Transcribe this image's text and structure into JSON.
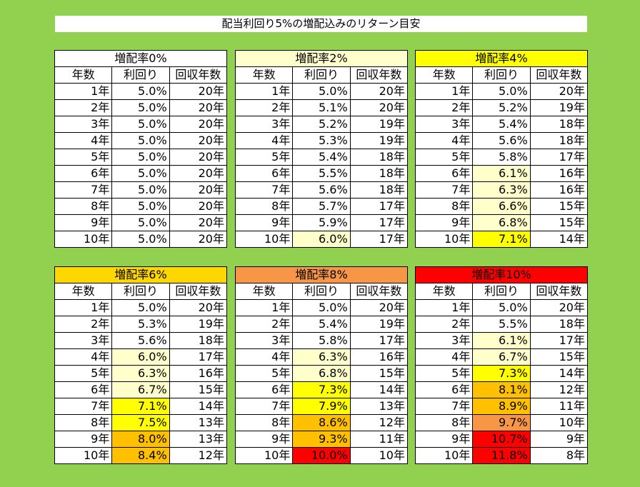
{
  "title": "配当利回り5%の増配込みのリターン目安",
  "columns": [
    "年数",
    "利回り",
    "回収年数"
  ],
  "panels": [
    {
      "heading": "増配率0%",
      "heading_color": "#ffffff",
      "rows": [
        {
          "year": "1年",
          "yield": "5.0%",
          "payback": "20年",
          "fill": "#ffffff"
        },
        {
          "year": "2年",
          "yield": "5.0%",
          "payback": "20年",
          "fill": "#ffffff"
        },
        {
          "year": "3年",
          "yield": "5.0%",
          "payback": "20年",
          "fill": "#ffffff"
        },
        {
          "year": "4年",
          "yield": "5.0%",
          "payback": "20年",
          "fill": "#ffffff"
        },
        {
          "year": "5年",
          "yield": "5.0%",
          "payback": "20年",
          "fill": "#ffffff"
        },
        {
          "year": "6年",
          "yield": "5.0%",
          "payback": "20年",
          "fill": "#ffffff"
        },
        {
          "year": "7年",
          "yield": "5.0%",
          "payback": "20年",
          "fill": "#ffffff"
        },
        {
          "year": "8年",
          "yield": "5.0%",
          "payback": "20年",
          "fill": "#ffffff"
        },
        {
          "year": "9年",
          "yield": "5.0%",
          "payback": "20年",
          "fill": "#ffffff"
        },
        {
          "year": "10年",
          "yield": "5.0%",
          "payback": "20年",
          "fill": "#ffffff"
        }
      ]
    },
    {
      "heading": "増配率2%",
      "heading_color": "#ffffcc",
      "rows": [
        {
          "year": "1年",
          "yield": "5.0%",
          "payback": "20年",
          "fill": "#ffffff"
        },
        {
          "year": "2年",
          "yield": "5.1%",
          "payback": "20年",
          "fill": "#ffffff"
        },
        {
          "year": "3年",
          "yield": "5.2%",
          "payback": "19年",
          "fill": "#ffffff"
        },
        {
          "year": "4年",
          "yield": "5.3%",
          "payback": "19年",
          "fill": "#ffffff"
        },
        {
          "year": "5年",
          "yield": "5.4%",
          "payback": "18年",
          "fill": "#ffffff"
        },
        {
          "year": "6年",
          "yield": "5.5%",
          "payback": "18年",
          "fill": "#ffffff"
        },
        {
          "year": "7年",
          "yield": "5.6%",
          "payback": "18年",
          "fill": "#ffffff"
        },
        {
          "year": "8年",
          "yield": "5.7%",
          "payback": "17年",
          "fill": "#ffffff"
        },
        {
          "year": "9年",
          "yield": "5.9%",
          "payback": "17年",
          "fill": "#ffffff"
        },
        {
          "year": "10年",
          "yield": "6.0%",
          "payback": "17年",
          "fill": "#ffffcc"
        }
      ]
    },
    {
      "heading": "増配率4%",
      "heading_color": "#ffff00",
      "rows": [
        {
          "year": "1年",
          "yield": "5.0%",
          "payback": "20年",
          "fill": "#ffffff"
        },
        {
          "year": "2年",
          "yield": "5.2%",
          "payback": "19年",
          "fill": "#ffffff"
        },
        {
          "year": "3年",
          "yield": "5.4%",
          "payback": "18年",
          "fill": "#ffffff"
        },
        {
          "year": "4年",
          "yield": "5.6%",
          "payback": "18年",
          "fill": "#ffffff"
        },
        {
          "year": "5年",
          "yield": "5.8%",
          "payback": "17年",
          "fill": "#ffffff"
        },
        {
          "year": "6年",
          "yield": "6.1%",
          "payback": "16年",
          "fill": "#ffffcc"
        },
        {
          "year": "7年",
          "yield": "6.3%",
          "payback": "16年",
          "fill": "#ffffcc"
        },
        {
          "year": "8年",
          "yield": "6.6%",
          "payback": "15年",
          "fill": "#ffffcc"
        },
        {
          "year": "9年",
          "yield": "6.8%",
          "payback": "15年",
          "fill": "#ffffcc"
        },
        {
          "year": "10年",
          "yield": "7.1%",
          "payback": "14年",
          "fill": "#ffff00"
        }
      ]
    },
    {
      "heading": "増配率6%",
      "heading_color": "#ffd700",
      "rows": [
        {
          "year": "1年",
          "yield": "5.0%",
          "payback": "20年",
          "fill": "#ffffff"
        },
        {
          "year": "2年",
          "yield": "5.3%",
          "payback": "19年",
          "fill": "#ffffff"
        },
        {
          "year": "3年",
          "yield": "5.6%",
          "payback": "18年",
          "fill": "#ffffff"
        },
        {
          "year": "4年",
          "yield": "6.0%",
          "payback": "17年",
          "fill": "#ffffcc"
        },
        {
          "year": "5年",
          "yield": "6.3%",
          "payback": "16年",
          "fill": "#ffffcc"
        },
        {
          "year": "6年",
          "yield": "6.7%",
          "payback": "15年",
          "fill": "#ffffcc"
        },
        {
          "year": "7年",
          "yield": "7.1%",
          "payback": "14年",
          "fill": "#ffff00"
        },
        {
          "year": "8年",
          "yield": "7.5%",
          "payback": "13年",
          "fill": "#ffff00"
        },
        {
          "year": "9年",
          "yield": "8.0%",
          "payback": "13年",
          "fill": "#ffc000"
        },
        {
          "year": "10年",
          "yield": "8.4%",
          "payback": "12年",
          "fill": "#ffc000"
        }
      ]
    },
    {
      "heading": "増配率8%",
      "heading_color": "#f79646",
      "rows": [
        {
          "year": "1年",
          "yield": "5.0%",
          "payback": "20年",
          "fill": "#ffffff"
        },
        {
          "year": "2年",
          "yield": "5.4%",
          "payback": "19年",
          "fill": "#ffffff"
        },
        {
          "year": "3年",
          "yield": "5.8%",
          "payback": "17年",
          "fill": "#ffffff"
        },
        {
          "year": "4年",
          "yield": "6.3%",
          "payback": "16年",
          "fill": "#ffffcc"
        },
        {
          "year": "5年",
          "yield": "6.8%",
          "payback": "15年",
          "fill": "#ffffcc"
        },
        {
          "year": "6年",
          "yield": "7.3%",
          "payback": "14年",
          "fill": "#ffff00"
        },
        {
          "year": "7年",
          "yield": "7.9%",
          "payback": "13年",
          "fill": "#ffff00"
        },
        {
          "year": "8年",
          "yield": "8.6%",
          "payback": "12年",
          "fill": "#ffc000"
        },
        {
          "year": "9年",
          "yield": "9.3%",
          "payback": "11年",
          "fill": "#ffc000"
        },
        {
          "year": "10年",
          "yield": "10.0%",
          "payback": "10年",
          "fill": "#ff0000"
        }
      ]
    },
    {
      "heading": "増配率10%",
      "heading_color": "#ff0000",
      "rows": [
        {
          "year": "1年",
          "yield": "5.0%",
          "payback": "20年",
          "fill": "#ffffff"
        },
        {
          "year": "2年",
          "yield": "5.5%",
          "payback": "18年",
          "fill": "#ffffff"
        },
        {
          "year": "3年",
          "yield": "6.1%",
          "payback": "17年",
          "fill": "#ffffcc"
        },
        {
          "year": "4年",
          "yield": "6.7%",
          "payback": "15年",
          "fill": "#ffffcc"
        },
        {
          "year": "5年",
          "yield": "7.3%",
          "payback": "14年",
          "fill": "#ffff00"
        },
        {
          "year": "6年",
          "yield": "8.1%",
          "payback": "12年",
          "fill": "#ffc000"
        },
        {
          "year": "7年",
          "yield": "8.9%",
          "payback": "11年",
          "fill": "#ffc000"
        },
        {
          "year": "8年",
          "yield": "9.7%",
          "payback": "10年",
          "fill": "#f79646"
        },
        {
          "year": "9年",
          "yield": "10.7%",
          "payback": "9年",
          "fill": "#ff0000"
        },
        {
          "year": "10年",
          "yield": "11.8%",
          "payback": "8年",
          "fill": "#ff0000"
        }
      ]
    }
  ]
}
